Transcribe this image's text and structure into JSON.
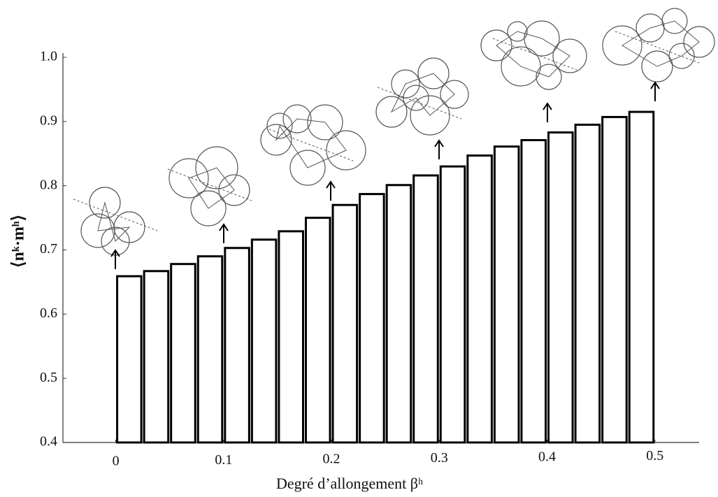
{
  "chart_data": {
    "type": "histogram",
    "xlabel": "Degré d’allongement βʰ",
    "ylabel": "⟨nᵏ·mʰ⟩",
    "bins": [
      0,
      0.025,
      0.05,
      0.075,
      0.1,
      0.125,
      0.15,
      0.175,
      0.2,
      0.225,
      0.25,
      0.275,
      0.3,
      0.325,
      0.35,
      0.375,
      0.4,
      0.425,
      0.45,
      0.475,
      0.5
    ],
    "values": [
      0.659,
      0.667,
      0.678,
      0.69,
      0.703,
      0.716,
      0.729,
      0.75,
      0.77,
      0.787,
      0.801,
      0.816,
      0.83,
      0.847,
      0.861,
      0.871,
      0.883,
      0.895,
      0.907,
      0.915
    ],
    "color": "#ffffff",
    "xlim": [
      -0.049,
      0.541
    ],
    "xticks": [
      0,
      0.1,
      0.2,
      0.3,
      0.4,
      0.5
    ],
    "ylim": [
      0.4,
      1.0
    ],
    "yticks": [
      0.4,
      0.5,
      0.6,
      0.7,
      0.8,
      0.9,
      {
        "value": 1.0,
        "label": "1.0"
      }
    ]
  }
}
